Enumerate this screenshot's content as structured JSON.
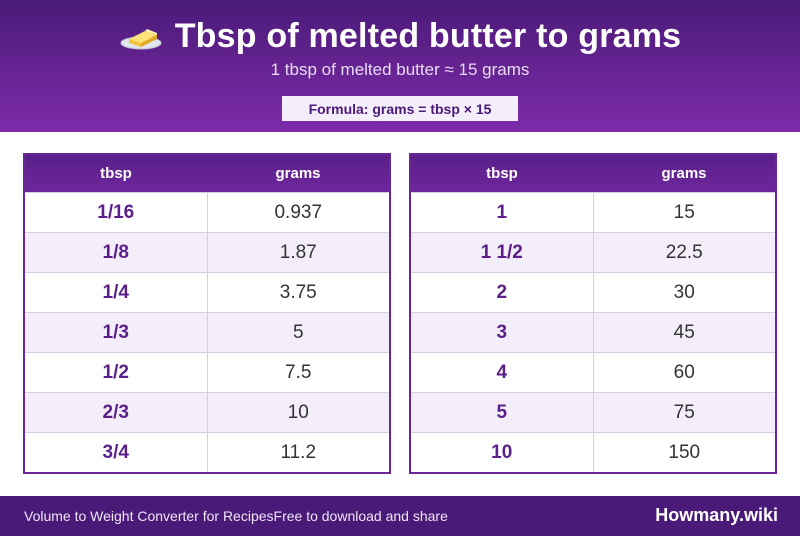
{
  "header": {
    "icon": "butter-icon",
    "title": "Tbsp of melted butter to grams",
    "subtitle": "1 tbsp of melted butter ≈ 15 grams",
    "formula": "Formula: grams = tbsp × 15"
  },
  "tables": {
    "left": {
      "col1": "tbsp",
      "col2": "grams",
      "rows": [
        {
          "tbsp": "1/16",
          "grams": "0.937"
        },
        {
          "tbsp": "1/8",
          "grams": "1.87"
        },
        {
          "tbsp": "1/4",
          "grams": "3.75"
        },
        {
          "tbsp": "1/3",
          "grams": "5"
        },
        {
          "tbsp": "1/2",
          "grams": "7.5"
        },
        {
          "tbsp": "2/3",
          "grams": "10"
        },
        {
          "tbsp": "3/4",
          "grams": "11.2"
        }
      ]
    },
    "right": {
      "col1": "tbsp",
      "col2": "grams",
      "rows": [
        {
          "tbsp": "1",
          "grams": "15"
        },
        {
          "tbsp": "1 1/2",
          "grams": "22.5"
        },
        {
          "tbsp": "2",
          "grams": "30"
        },
        {
          "tbsp": "3",
          "grams": "45"
        },
        {
          "tbsp": "4",
          "grams": "60"
        },
        {
          "tbsp": "5",
          "grams": "75"
        },
        {
          "tbsp": "10",
          "grams": "150"
        }
      ]
    }
  },
  "footer": {
    "left_text": "Volume to Weight Converter for Recipes",
    "middle_text": "Free to download and share",
    "brand": "Howmany.wiki"
  },
  "colors": {
    "header_purple": "#6a2596",
    "dark_purple": "#4a1a78",
    "accent_text": "#5a1f88"
  }
}
